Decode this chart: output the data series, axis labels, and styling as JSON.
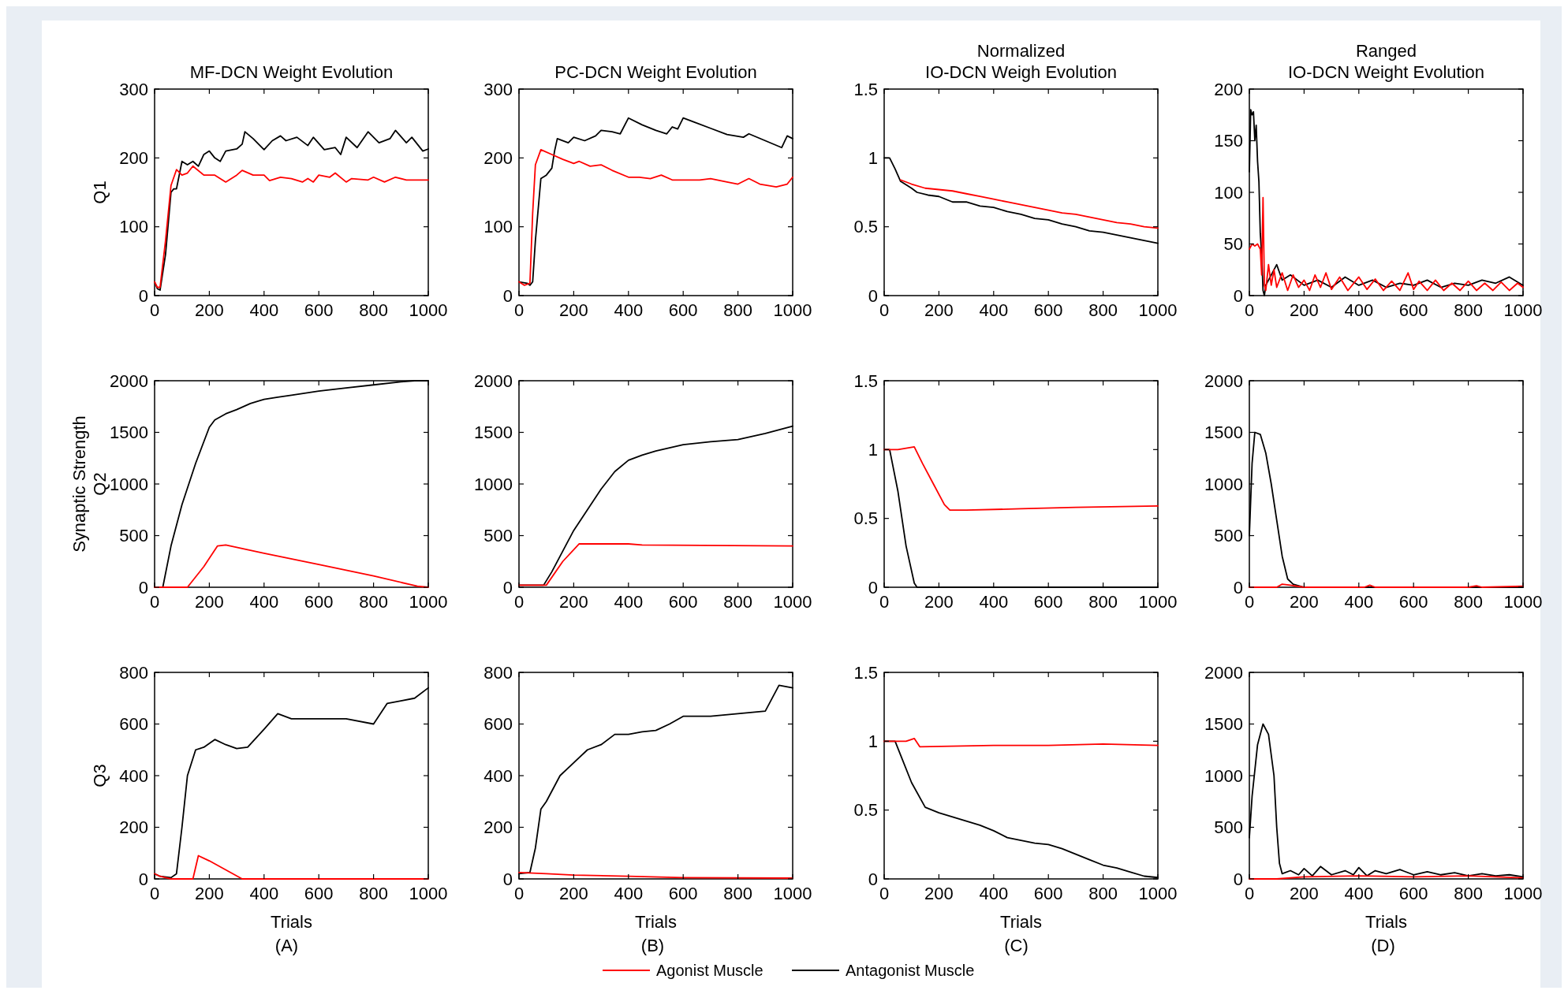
{
  "chart_data": [
    {
      "type": "line",
      "title": "MF-DCN Weight Evolution",
      "ylabel": "Q1",
      "xlim": [
        0,
        1000
      ],
      "xticks": [
        0,
        200,
        400,
        600,
        800,
        1000
      ],
      "ylim": [
        0,
        300
      ],
      "yticks": [
        0,
        100,
        200,
        300
      ],
      "series": [
        {
          "color": "#000000",
          "x": [
            0,
            10,
            20,
            40,
            60,
            70,
            80,
            100,
            120,
            140,
            160,
            180,
            200,
            220,
            240,
            260,
            300,
            320,
            330,
            360,
            400,
            430,
            460,
            480,
            520,
            560,
            580,
            620,
            660,
            680,
            700,
            740,
            780,
            820,
            860,
            880,
            920,
            940,
            980,
            1000
          ],
          "values": [
            20,
            10,
            8,
            60,
            150,
            155,
            155,
            195,
            190,
            195,
            188,
            205,
            210,
            200,
            195,
            210,
            213,
            220,
            238,
            228,
            212,
            225,
            232,
            225,
            230,
            218,
            230,
            212,
            215,
            205,
            230,
            215,
            238,
            222,
            228,
            240,
            222,
            230,
            210,
            213
          ]
        },
        {
          "color": "#ff0000",
          "x": [
            0,
            10,
            20,
            40,
            60,
            80,
            100,
            120,
            140,
            180,
            220,
            260,
            300,
            320,
            360,
            400,
            420,
            460,
            500,
            540,
            560,
            580,
            600,
            640,
            660,
            700,
            720,
            780,
            800,
            840,
            880,
            920,
            960,
            1000
          ],
          "values": [
            20,
            12,
            12,
            80,
            160,
            183,
            175,
            178,
            188,
            175,
            175,
            165,
            175,
            182,
            175,
            175,
            167,
            172,
            170,
            165,
            170,
            165,
            175,
            172,
            178,
            165,
            170,
            168,
            172,
            165,
            172,
            168,
            168,
            168
          ]
        }
      ]
    },
    {
      "type": "line",
      "title": "PC-DCN Weight Evolution",
      "xlim": [
        0,
        1000
      ],
      "xticks": [
        0,
        200,
        400,
        600,
        800,
        1000
      ],
      "ylim": [
        0,
        300
      ],
      "yticks": [
        0,
        100,
        200,
        300
      ],
      "series": [
        {
          "color": "#000000",
          "x": [
            0,
            30,
            40,
            50,
            60,
            80,
            100,
            120,
            130,
            140,
            180,
            200,
            240,
            280,
            300,
            340,
            370,
            400,
            450,
            500,
            540,
            560,
            580,
            600,
            640,
            700,
            760,
            820,
            840,
            900,
            960,
            980,
            1000
          ],
          "values": [
            20,
            18,
            15,
            20,
            80,
            170,
            175,
            185,
            210,
            228,
            222,
            230,
            225,
            232,
            240,
            238,
            235,
            258,
            248,
            240,
            235,
            245,
            242,
            258,
            252,
            243,
            234,
            230,
            235,
            225,
            215,
            232,
            228
          ]
        },
        {
          "color": "#ff0000",
          "x": [
            0,
            20,
            40,
            50,
            60,
            80,
            120,
            160,
            200,
            220,
            260,
            300,
            340,
            400,
            440,
            480,
            520,
            560,
            600,
            660,
            700,
            760,
            800,
            840,
            880,
            940,
            980,
            1000
          ],
          "values": [
            20,
            15,
            18,
            120,
            190,
            212,
            205,
            198,
            192,
            195,
            188,
            190,
            182,
            172,
            172,
            170,
            175,
            168,
            168,
            168,
            170,
            165,
            162,
            170,
            162,
            158,
            162,
            172
          ]
        }
      ]
    },
    {
      "type": "line",
      "title": "Normalized\nIO-DCN Weigh Evolution",
      "xlim": [
        0,
        1000
      ],
      "xticks": [
        0,
        200,
        400,
        600,
        800,
        1000
      ],
      "ylim": [
        0,
        1.5
      ],
      "yticks": [
        0,
        0.5,
        1,
        1.5
      ],
      "series": [
        {
          "color": "#000000",
          "x": [
            0,
            20,
            40,
            60,
            100,
            120,
            160,
            200,
            250,
            300,
            350,
            400,
            450,
            500,
            550,
            600,
            650,
            700,
            750,
            800,
            850,
            900,
            950,
            1000
          ],
          "values": [
            1,
            1,
            0.92,
            0.83,
            0.78,
            0.75,
            0.73,
            0.72,
            0.68,
            0.68,
            0.65,
            0.64,
            0.61,
            0.59,
            0.56,
            0.55,
            0.52,
            0.5,
            0.47,
            0.46,
            0.44,
            0.42,
            0.4,
            0.38
          ]
        },
        {
          "color": "#ff0000",
          "x": [
            60,
            100,
            150,
            200,
            250,
            300,
            350,
            400,
            450,
            500,
            550,
            600,
            650,
            700,
            750,
            800,
            850,
            900,
            950,
            1000
          ],
          "values": [
            0.84,
            0.81,
            0.78,
            0.77,
            0.76,
            0.74,
            0.72,
            0.7,
            0.68,
            0.66,
            0.64,
            0.62,
            0.6,
            0.59,
            0.57,
            0.55,
            0.53,
            0.52,
            0.5,
            0.49
          ]
        }
      ]
    },
    {
      "type": "line",
      "title": "Ranged\nIO-DCN Weight Evolution",
      "xlim": [
        0,
        1000
      ],
      "xticks": [
        0,
        200,
        400,
        600,
        800,
        1000
      ],
      "ylim": [
        0,
        200
      ],
      "yticks": [
        0,
        50,
        100,
        150,
        200
      ],
      "series": [
        {
          "color": "#000000",
          "x": [
            0,
            5,
            10,
            15,
            20,
            25,
            30,
            35,
            40,
            45,
            50,
            55,
            60,
            80,
            100,
            120,
            150,
            200,
            250,
            300,
            350,
            400,
            450,
            500,
            550,
            600,
            650,
            700,
            750,
            800,
            850,
            900,
            950,
            1000
          ],
          "values": [
            120,
            180,
            175,
            178,
            150,
            165,
            130,
            110,
            60,
            40,
            5,
            0,
            10,
            20,
            30,
            15,
            20,
            10,
            15,
            8,
            18,
            10,
            15,
            8,
            12,
            10,
            15,
            8,
            12,
            10,
            15,
            12,
            18,
            10
          ]
        },
        {
          "color": "#ff0000",
          "x": [
            0,
            10,
            20,
            30,
            40,
            45,
            50,
            55,
            60,
            70,
            80,
            90,
            100,
            120,
            140,
            160,
            180,
            200,
            220,
            240,
            260,
            280,
            300,
            330,
            360,
            400,
            430,
            460,
            490,
            520,
            550,
            580,
            600,
            620,
            650,
            680,
            710,
            740,
            770,
            800,
            830,
            860,
            890,
            920,
            950,
            980,
            1000
          ],
          "values": [
            45,
            50,
            48,
            50,
            45,
            20,
            95,
            10,
            5,
            30,
            10,
            25,
            8,
            22,
            5,
            20,
            8,
            15,
            5,
            20,
            8,
            22,
            6,
            18,
            5,
            18,
            6,
            16,
            5,
            14,
            5,
            22,
            6,
            14,
            5,
            15,
            5,
            12,
            5,
            14,
            5,
            12,
            5,
            13,
            5,
            12,
            8
          ]
        }
      ]
    },
    {
      "type": "line",
      "ylabel": "Synaptic Strength\nQ2",
      "xlim": [
        0,
        1000
      ],
      "xticks": [
        0,
        200,
        400,
        600,
        800,
        1000
      ],
      "ylim": [
        0,
        2000
      ],
      "yticks": [
        0,
        500,
        1000,
        1500,
        2000
      ],
      "series": [
        {
          "color": "#000000",
          "x": [
            0,
            30,
            60,
            100,
            150,
            200,
            220,
            260,
            300,
            350,
            400,
            450,
            500,
            600,
            700,
            800,
            900,
            950,
            1000
          ],
          "values": [
            0,
            0,
            400,
            800,
            1200,
            1550,
            1620,
            1680,
            1720,
            1780,
            1820,
            1840,
            1860,
            1900,
            1930,
            1960,
            1990,
            2000,
            2000
          ]
        },
        {
          "color": "#ff0000",
          "x": [
            0,
            120,
            180,
            230,
            260,
            400,
            600,
            800,
            960,
            1000
          ],
          "values": [
            0,
            0,
            200,
            400,
            410,
            330,
            220,
            110,
            10,
            0
          ]
        }
      ]
    },
    {
      "type": "line",
      "xlim": [
        0,
        1000
      ],
      "xticks": [
        0,
        200,
        400,
        600,
        800,
        1000
      ],
      "ylim": [
        0,
        2000
      ],
      "yticks": [
        0,
        500,
        1000,
        1500,
        2000
      ],
      "series": [
        {
          "color": "#000000",
          "x": [
            0,
            90,
            120,
            160,
            200,
            250,
            300,
            350,
            400,
            450,
            500,
            600,
            700,
            800,
            900,
            1000
          ],
          "values": [
            20,
            20,
            150,
            350,
            550,
            750,
            950,
            1120,
            1230,
            1280,
            1320,
            1380,
            1410,
            1430,
            1490,
            1560
          ]
        },
        {
          "color": "#ff0000",
          "x": [
            0,
            100,
            160,
            220,
            400,
            450,
            1000
          ],
          "values": [
            20,
            20,
            250,
            420,
            420,
            410,
            400
          ]
        }
      ]
    },
    {
      "type": "line",
      "xlim": [
        0,
        1000
      ],
      "xticks": [
        0,
        200,
        400,
        600,
        800,
        1000
      ],
      "ylim": [
        0,
        1.5
      ],
      "yticks": [
        0,
        0.5,
        1,
        1.5
      ],
      "series": [
        {
          "color": "#000000",
          "x": [
            0,
            20,
            50,
            80,
            110,
            120,
            1000
          ],
          "values": [
            1,
            1,
            0.7,
            0.3,
            0.03,
            0,
            0
          ]
        },
        {
          "color": "#ff0000",
          "x": [
            0,
            50,
            110,
            140,
            180,
            220,
            240,
            300,
            500,
            700,
            1000
          ],
          "values": [
            1,
            1,
            1.02,
            0.9,
            0.75,
            0.6,
            0.56,
            0.56,
            0.57,
            0.58,
            0.59
          ]
        }
      ]
    },
    {
      "type": "line",
      "xlim": [
        0,
        1000
      ],
      "xticks": [
        0,
        200,
        400,
        600,
        800,
        1000
      ],
      "ylim": [
        0,
        2000
      ],
      "yticks": [
        0,
        500,
        1000,
        1500,
        2000
      ],
      "series": [
        {
          "color": "#000000",
          "x": [
            0,
            10,
            20,
            40,
            60,
            80,
            100,
            120,
            140,
            160,
            200,
            1000
          ],
          "values": [
            500,
            1200,
            1500,
            1480,
            1300,
            1000,
            650,
            300,
            80,
            30,
            0,
            0
          ]
        },
        {
          "color": "#ff0000",
          "x": [
            0,
            100,
            120,
            150,
            200,
            420,
            440,
            460,
            800,
            830,
            850,
            1000
          ],
          "values": [
            0,
            0,
            30,
            20,
            0,
            0,
            20,
            0,
            0,
            15,
            0,
            10
          ]
        }
      ]
    },
    {
      "type": "line",
      "ylabel": "Q3",
      "xlabel": "Trials",
      "annotations": [
        "(A)"
      ],
      "xlim": [
        0,
        1000
      ],
      "xticks": [
        0,
        200,
        400,
        600,
        800,
        1000
      ],
      "ylim": [
        0,
        800
      ],
      "yticks": [
        0,
        200,
        400,
        600,
        800
      ],
      "series": [
        {
          "color": "#000000",
          "x": [
            0,
            20,
            60,
            80,
            100,
            120,
            150,
            180,
            220,
            260,
            300,
            340,
            400,
            450,
            500,
            600,
            700,
            800,
            850,
            900,
            950,
            1000
          ],
          "values": [
            20,
            10,
            5,
            20,
            200,
            400,
            500,
            510,
            540,
            520,
            505,
            510,
            580,
            640,
            620,
            620,
            620,
            600,
            680,
            690,
            700,
            740
          ]
        },
        {
          "color": "#ff0000",
          "x": [
            0,
            20,
            40,
            60,
            140,
            160,
            200,
            320,
            1000
          ],
          "values": [
            20,
            10,
            5,
            0,
            0,
            90,
            70,
            0,
            0
          ]
        }
      ]
    },
    {
      "type": "line",
      "xlabel": "Trials",
      "annotations": [
        "(B)"
      ],
      "legend": "bottom",
      "xlim": [
        0,
        1000
      ],
      "xticks": [
        0,
        200,
        400,
        600,
        800,
        1000
      ],
      "ylim": [
        0,
        800
      ],
      "yticks": [
        0,
        200,
        400,
        600,
        800
      ],
      "series": [
        {
          "name": "Antagonist Muscle",
          "color": "#000000",
          "x": [
            0,
            40,
            60,
            80,
            100,
            150,
            200,
            250,
            300,
            350,
            400,
            450,
            500,
            550,
            600,
            700,
            800,
            900,
            950,
            1000
          ],
          "values": [
            20,
            25,
            120,
            270,
            300,
            400,
            450,
            500,
            520,
            560,
            560,
            570,
            575,
            600,
            630,
            630,
            640,
            650,
            750,
            740
          ]
        },
        {
          "name": "Agonist Muscle",
          "color": "#ff0000",
          "x": [
            0,
            100,
            200,
            400,
            600,
            1000
          ],
          "values": [
            25,
            20,
            15,
            10,
            5,
            3
          ]
        }
      ]
    },
    {
      "type": "line",
      "xlabel": "Trials",
      "annotations": [
        "(C)"
      ],
      "xlim": [
        0,
        1000
      ],
      "xticks": [
        0,
        200,
        400,
        600,
        800,
        1000
      ],
      "ylim": [
        0,
        1.5
      ],
      "yticks": [
        0,
        0.5,
        1,
        1.5
      ],
      "series": [
        {
          "color": "#000000",
          "x": [
            0,
            40,
            60,
            100,
            150,
            200,
            250,
            300,
            350,
            400,
            450,
            500,
            550,
            600,
            650,
            700,
            750,
            800,
            850,
            900,
            950,
            1000
          ],
          "values": [
            1,
            1,
            0.9,
            0.7,
            0.52,
            0.48,
            0.45,
            0.42,
            0.39,
            0.35,
            0.3,
            0.28,
            0.26,
            0.25,
            0.22,
            0.18,
            0.14,
            0.1,
            0.08,
            0.05,
            0.02,
            0.01
          ]
        },
        {
          "color": "#ff0000",
          "x": [
            0,
            80,
            110,
            130,
            400,
            600,
            800,
            1000
          ],
          "values": [
            1,
            1,
            1.02,
            0.96,
            0.97,
            0.97,
            0.98,
            0.97
          ]
        }
      ]
    },
    {
      "type": "line",
      "xlabel": "Trials",
      "annotations": [
        "(D)"
      ],
      "xlim": [
        0,
        1000
      ],
      "xticks": [
        0,
        200,
        400,
        600,
        800,
        1000
      ],
      "ylim": [
        0,
        2000
      ],
      "yticks": [
        0,
        500,
        1000,
        1500,
        2000
      ],
      "series": [
        {
          "color": "#000000",
          "x": [
            0,
            10,
            30,
            50,
            70,
            90,
            100,
            110,
            120,
            150,
            180,
            200,
            230,
            260,
            300,
            350,
            380,
            400,
            430,
            460,
            500,
            550,
            600,
            650,
            700,
            750,
            800,
            850,
            900,
            950,
            1000
          ],
          "values": [
            400,
            800,
            1300,
            1500,
            1400,
            1000,
            500,
            150,
            50,
            80,
            40,
            100,
            30,
            120,
            40,
            80,
            40,
            110,
            30,
            80,
            50,
            90,
            40,
            70,
            40,
            60,
            30,
            50,
            30,
            40,
            20
          ]
        },
        {
          "color": "#ff0000",
          "x": [
            0,
            100,
            200,
            400,
            600,
            800,
            1000
          ],
          "values": [
            0,
            0,
            20,
            30,
            20,
            30,
            10
          ]
        }
      ]
    }
  ]
}
